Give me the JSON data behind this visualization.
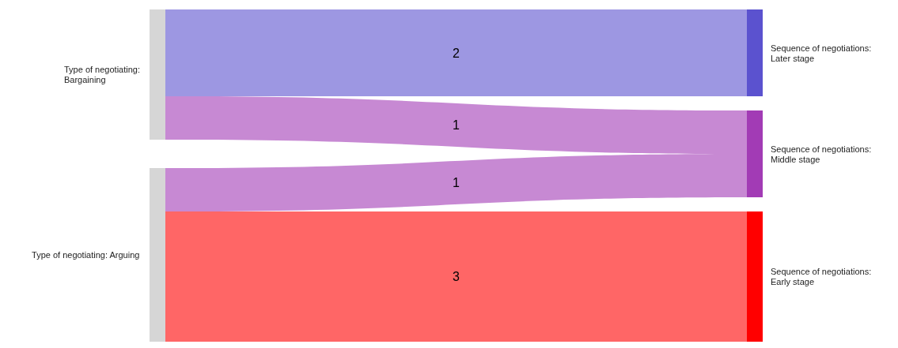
{
  "chart_data": {
    "type": "other",
    "categories": [
      "Type of negotiating: Bargaining",
      "Type of negotiating: Arguing"
    ],
    "series": [
      {
        "name": "Sequence of negotiations: Later stage",
        "color": "#5b52cf",
        "values": [
          2,
          null
        ]
      },
      {
        "name": "Sequence of negotiations: Middle stage",
        "color": "#a23bb5",
        "values": [
          1,
          1
        ]
      },
      {
        "name": "Sequence of negotiations: Early stage",
        "color": "#ff0000",
        "values": [
          null,
          3
        ]
      }
    ],
    "data_labels": true
  }
}
